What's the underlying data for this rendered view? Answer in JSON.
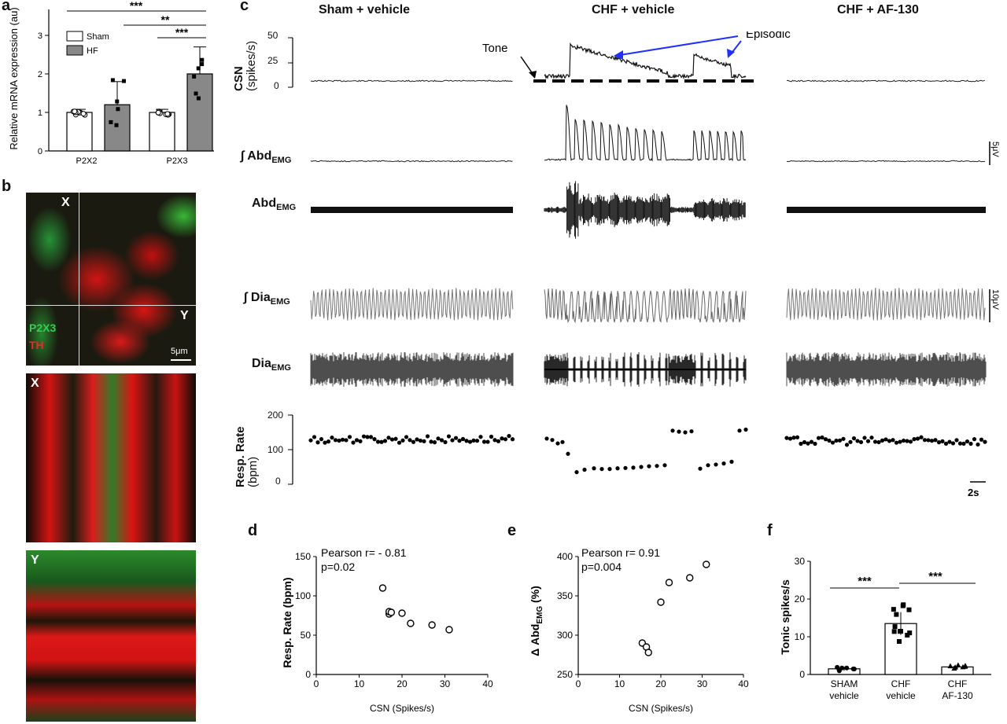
{
  "panels": {
    "a": {
      "label": "a",
      "ylabel": "Relative mRNA expression (au)",
      "legend": [
        "Sham",
        "HF"
      ],
      "categories": [
        "P2X2",
        "P2X3"
      ],
      "sig": [
        "***",
        "**",
        "***"
      ],
      "yticks": [
        "0",
        "1",
        "2",
        "3"
      ]
    },
    "b": {
      "label": "b",
      "x_label": "X",
      "y_label": "Y",
      "ch1": "P2X3",
      "ch2": "TH",
      "scale": "5μm"
    },
    "c": {
      "label": "c",
      "headers": [
        "Sham + vehicle",
        "CHF + vehicle",
        "CHF + AF-130"
      ],
      "csn_label": "CSN",
      "csn_units": "(spikes/s)",
      "csn_ticks": [
        "50",
        "25",
        "0"
      ],
      "tone": "Tone",
      "episodic": "Episodic",
      "abd_int": "∫ Abd",
      "abd": "Abd",
      "dia_int": "∫ Dia",
      "dia": "Dia",
      "emg": "EMG",
      "resp_label": "Resp. Rate",
      "resp_units": "(bpm)",
      "resp_ticks": [
        "200",
        "100",
        "0"
      ],
      "abd_scale": "5μV",
      "dia_scale": "10μV",
      "time_scale": "2s"
    },
    "d": {
      "label": "d",
      "stat1": "Pearson r= - 0.81",
      "stat2": "p=0.02"
    },
    "e": {
      "label": "e",
      "stat1": "Pearson r= 0.91",
      "stat2": "p=0.004"
    },
    "f": {
      "label": "f",
      "sig": [
        "***",
        "***"
      ]
    }
  },
  "chart_data": [
    {
      "type": "bar",
      "panel": "a",
      "categories": [
        "P2X2",
        "P2X3"
      ],
      "series": [
        {
          "name": "Sham",
          "values": [
            1.0,
            1.0
          ],
          "err": [
            0.08,
            0.08
          ]
        },
        {
          "name": "HF",
          "values": [
            1.2,
            2.0
          ],
          "err": [
            0.6,
            0.7
          ]
        }
      ],
      "ylabel": "Relative mRNA expression (au)",
      "ylim": [
        0,
        3
      ]
    },
    {
      "type": "scatter",
      "panel": "d",
      "x": [
        15.5,
        17,
        17,
        17.5,
        20,
        22,
        27,
        31
      ],
      "y": [
        110,
        77,
        80,
        79,
        78,
        65,
        63,
        57
      ],
      "xlabel": "CSN (Spikes/s)",
      "ylabel": "Resp. Rate (bpm)",
      "xlim": [
        0,
        40
      ],
      "ylim": [
        0,
        150
      ],
      "xticks": [
        0,
        10,
        20,
        30,
        40
      ],
      "yticks": [
        0,
        50,
        100,
        150
      ]
    },
    {
      "type": "scatter",
      "panel": "e",
      "x": [
        15.5,
        16.5,
        17,
        20,
        22,
        27,
        31
      ],
      "y": [
        290,
        285,
        278,
        342,
        367,
        373,
        390
      ],
      "xlabel": "CSN (Spikes/s)",
      "ylabel": "Δ Abd(EMG) (%)",
      "xlim": [
        0,
        40
      ],
      "ylim": [
        250,
        400
      ],
      "xticks": [
        0,
        10,
        20,
        30,
        40
      ],
      "yticks": [
        250,
        300,
        350,
        400
      ]
    },
    {
      "type": "bar",
      "panel": "f",
      "categories": [
        "SHAM vehicle",
        "CHF vehicle",
        "CHF AF-130"
      ],
      "values": [
        1.5,
        13.5,
        2.0
      ],
      "ylabel": "Tonic spikes/s",
      "ylim": [
        0,
        30
      ],
      "yticks": [
        0,
        10,
        20,
        30
      ]
    }
  ]
}
